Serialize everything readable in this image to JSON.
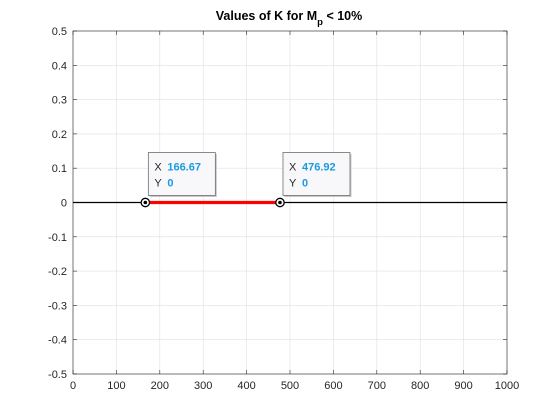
{
  "chart_data": {
    "type": "line",
    "title": "Values of K for M",
    "title_subscript": "p",
    "title_suffix": " < 10%",
    "xlabel": "",
    "ylabel": "",
    "xlim": [
      0,
      1000
    ],
    "ylim": [
      -0.5,
      0.5
    ],
    "x_ticks": [
      0,
      100,
      200,
      300,
      400,
      500,
      600,
      700,
      800,
      900,
      1000
    ],
    "x_tick_labels": [
      "0",
      "100",
      "200",
      "300",
      "400",
      "500",
      "600",
      "700",
      "800",
      "900",
      "1000"
    ],
    "y_ticks": [
      0.5,
      0.4,
      0.3,
      0.2,
      0.1,
      0,
      -0.1,
      -0.2,
      -0.3,
      -0.4,
      -0.5
    ],
    "y_tick_labels": [
      "0.5",
      "0.4",
      "0.3",
      "0.2",
      "0.1",
      "0",
      "-0.1",
      "-0.2",
      "-0.3",
      "-0.4",
      "-0.5"
    ],
    "grid": true,
    "series": [
      {
        "x": [
          0,
          1000
        ],
        "y": [
          0,
          0
        ],
        "color": "#000000"
      },
      {
        "x": [
          166.67,
          476.92
        ],
        "y": [
          0,
          0
        ],
        "color": "#ff0000"
      }
    ],
    "datatips": [
      {
        "x": 166.67,
        "y": 0,
        "x_key": "X",
        "y_key": "Y",
        "x_text": "166.67",
        "y_text": "0"
      },
      {
        "x": 476.92,
        "y": 0,
        "x_key": "X",
        "y_key": "Y",
        "x_text": "476.92",
        "y_text": "0"
      }
    ]
  }
}
